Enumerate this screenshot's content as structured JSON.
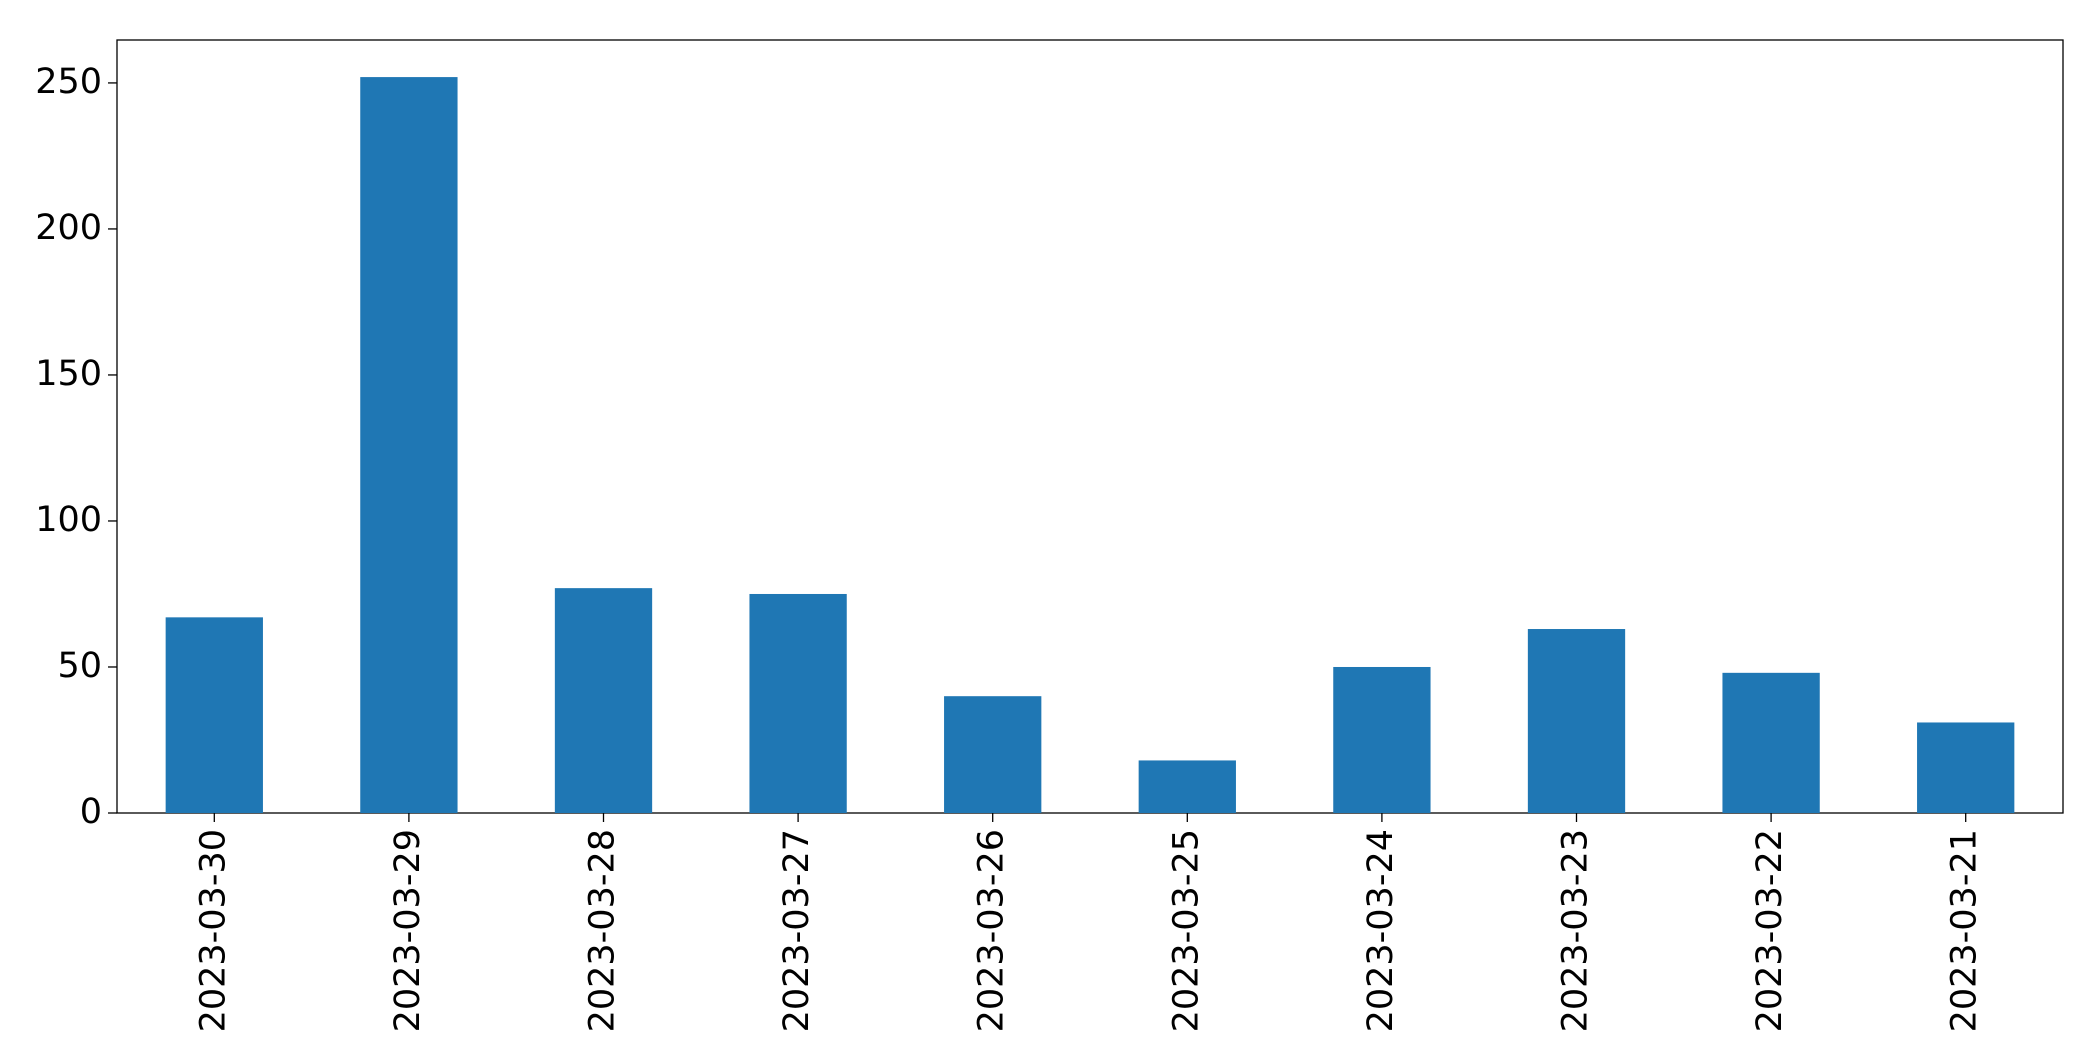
{
  "chart_data": {
    "type": "bar",
    "categories": [
      "2023-03-30",
      "2023-03-29",
      "2023-03-28",
      "2023-03-27",
      "2023-03-26",
      "2023-03-25",
      "2023-03-24",
      "2023-03-23",
      "2023-03-22",
      "2023-03-21"
    ],
    "values": [
      67,
      252,
      77,
      75,
      40,
      18,
      50,
      63,
      48,
      31
    ],
    "color": "#1f77b4",
    "ylim": [
      0,
      264.7
    ],
    "yticks": [
      0,
      50,
      100,
      150,
      200,
      250
    ],
    "grid": false
  }
}
